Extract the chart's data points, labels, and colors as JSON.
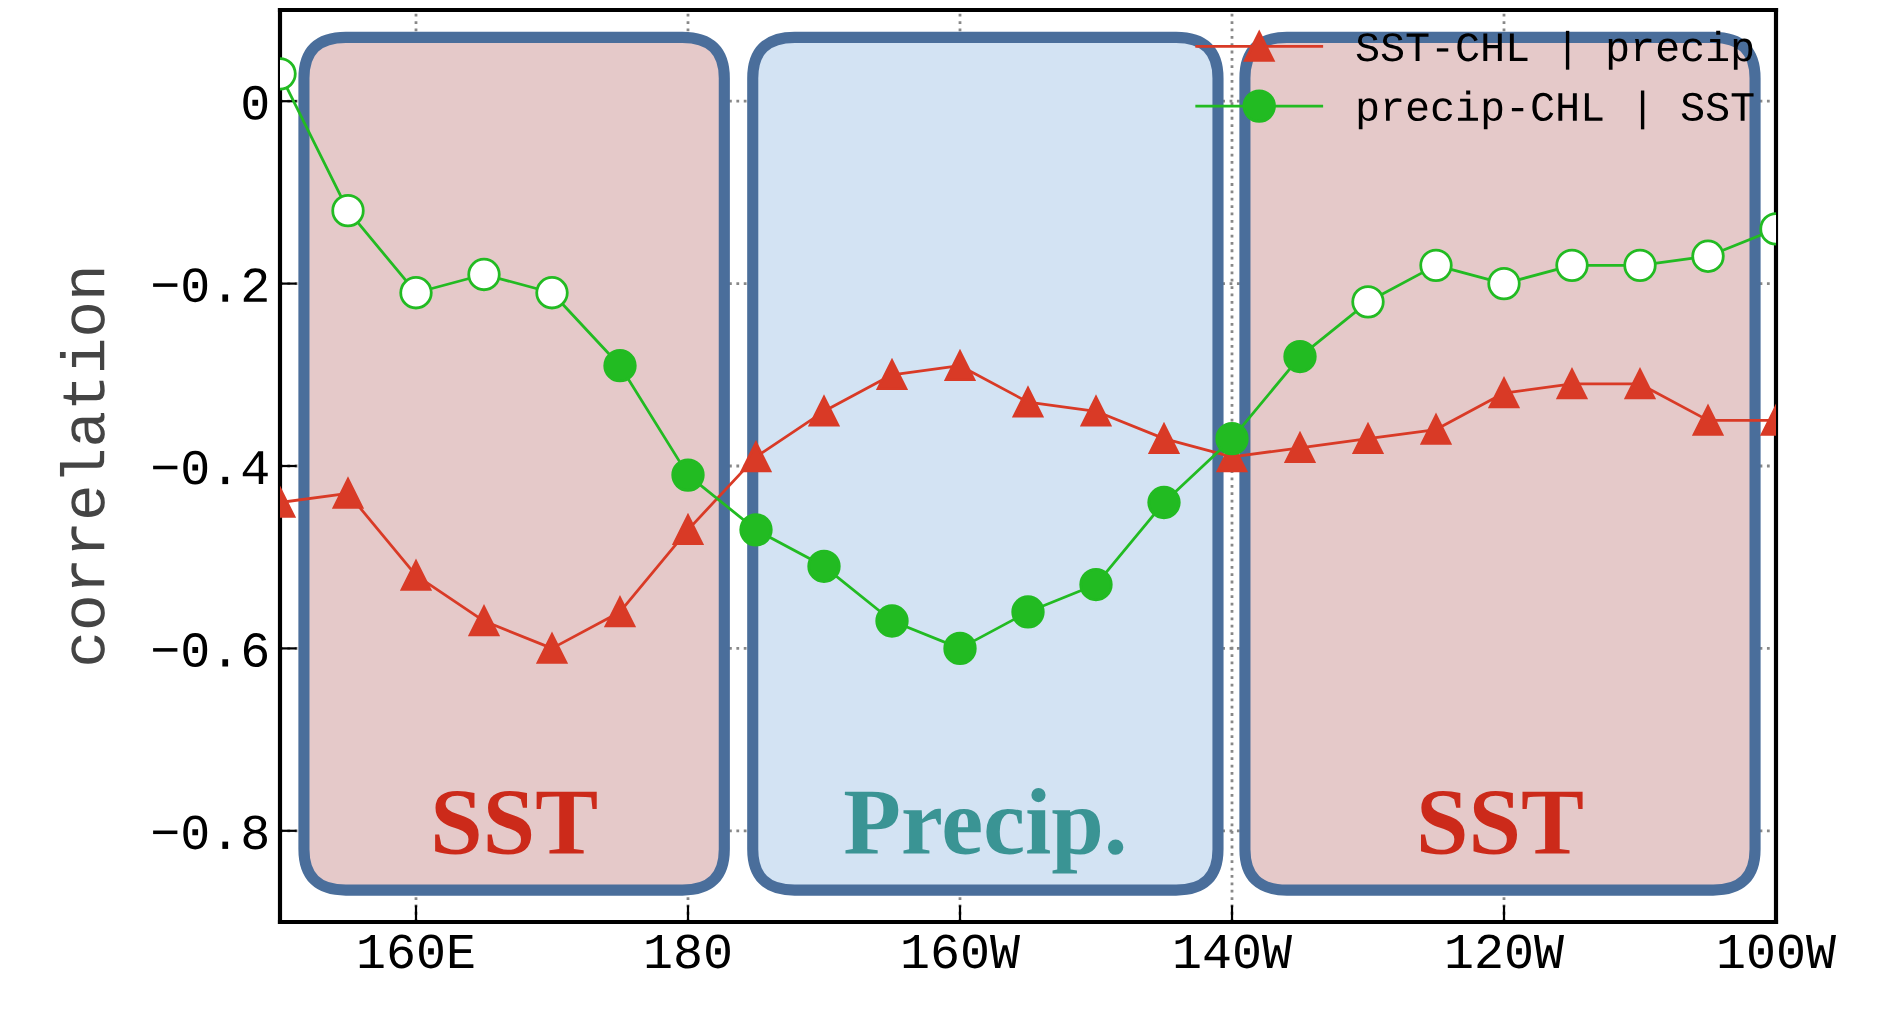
{
  "chart_data": {
    "type": "line",
    "ylabel": "correlation",
    "categories": [
      null,
      null,
      "160E",
      null,
      null,
      null,
      "180",
      null,
      null,
      null,
      "160W",
      null,
      null,
      null,
      "140W",
      null,
      null,
      null,
      "120W",
      null,
      null,
      null,
      "100W"
    ],
    "series": [
      {
        "name": "SST-CHL | precip",
        "color": "#d93a26",
        "marker": "triangle",
        "values": [
          -0.44,
          -0.43,
          -0.52,
          -0.57,
          -0.6,
          -0.56,
          -0.47,
          -0.39,
          -0.34,
          -0.3,
          -0.29,
          -0.33,
          -0.34,
          -0.37,
          -0.39,
          -0.38,
          -0.37,
          -0.36,
          -0.32,
          -0.31,
          -0.31,
          -0.35,
          -0.35
        ]
      },
      {
        "name": "precip-CHL | SST",
        "color": "#22bb22",
        "marker": "circle",
        "values": [
          0.03,
          -0.12,
          -0.21,
          -0.19,
          -0.21,
          -0.29,
          -0.41,
          -0.47,
          -0.51,
          -0.57,
          -0.6,
          -0.56,
          -0.53,
          -0.44,
          -0.37,
          -0.28,
          -0.22,
          -0.18,
          -0.2,
          -0.18,
          -0.18,
          -0.17,
          -0.14
        ],
        "colors": [
          "#ffffff",
          "#ffffff",
          "#ffffff",
          "#ffffff",
          "#ffffff",
          "#22bb22",
          "#22bb22",
          "#22bb22",
          "#22bb22",
          "#22bb22",
          "#22bb22",
          "#22bb22",
          "#22bb22",
          "#22bb22",
          "#22bb22",
          "#22bb22",
          "#ffffff",
          "#ffffff",
          "#ffffff",
          "#ffffff",
          "#ffffff",
          "#ffffff",
          "#ffffff"
        ]
      }
    ],
    "annotations": [
      "SST",
      "Precip.",
      "SST"
    ],
    "ylim": [
      -0.9,
      0.1
    ],
    "yticks": [
      {
        "value": 0,
        "label": "0"
      },
      {
        "value": -0.2,
        "label": "−0.2"
      },
      {
        "value": -0.4,
        "label": "−0.4"
      },
      {
        "value": -0.6,
        "label": "−0.6"
      },
      {
        "value": -0.8,
        "label": "−0.8"
      }
    ],
    "grid": true,
    "legend": "top right"
  }
}
